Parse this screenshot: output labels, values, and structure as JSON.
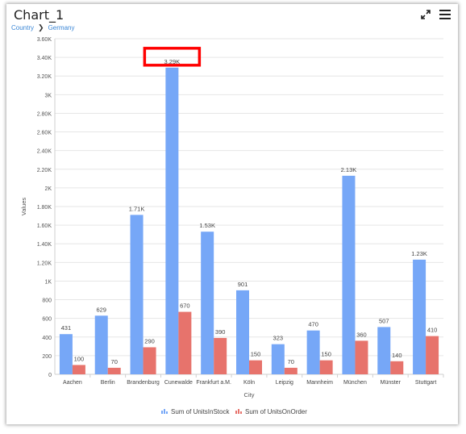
{
  "title": "Chart_1",
  "breadcrumb": {
    "items": [
      "Country",
      "Germany"
    ]
  },
  "toolbar": {
    "icons": [
      "expand-icon",
      "menu-icon"
    ]
  },
  "colors": {
    "stock": "#76a7f7",
    "order": "#e7736c",
    "highlight": "#ff0000"
  },
  "chart_data": {
    "type": "bar",
    "xlabel": "City",
    "ylabel": "Values",
    "ylim": [
      0,
      3600
    ],
    "yticks": [
      0,
      200,
      400,
      600,
      800,
      1000,
      1200,
      1400,
      1600,
      1800,
      2000,
      2200,
      2400,
      2600,
      2800,
      3000,
      3200,
      3400,
      3600
    ],
    "ytick_labels": [
      "0",
      "200",
      "400",
      "600",
      "800",
      "1K",
      "1.20K",
      "1.40K",
      "1.60K",
      "1.80K",
      "2K",
      "2.20K",
      "2.40K",
      "2.60K",
      "2.80K",
      "3K",
      "3.20K",
      "3.40K",
      "3.60K"
    ],
    "categories": [
      "Aachen",
      "Berlin",
      "Brandenburg",
      "Cunewalde",
      "Frankfurt a.M.",
      "Köln",
      "Leipzig",
      "Mannheim",
      "München",
      "Münster",
      "Stuttgart"
    ],
    "series": [
      {
        "name": "Sum of UnitsInStock",
        "values": [
          431,
          629,
          1710,
          3290,
          1530,
          901,
          323,
          470,
          2130,
          507,
          1230
        ],
        "labels": [
          "431",
          "629",
          "1.71K",
          "3.29K",
          "1.53K",
          "901",
          "323",
          "470",
          "2.13K",
          "507",
          "1.23K"
        ]
      },
      {
        "name": "Sum of UnitsOnOrder",
        "values": [
          100,
          70,
          290,
          670,
          390,
          150,
          70,
          150,
          360,
          140,
          410
        ],
        "labels": [
          "100",
          "70",
          "290",
          "670",
          "390",
          "150",
          "70",
          "150",
          "360",
          "140",
          "410"
        ]
      }
    ],
    "highlighted_label": {
      "series": 0,
      "index": 3
    },
    "grid": true,
    "legend": "bottom-center"
  }
}
